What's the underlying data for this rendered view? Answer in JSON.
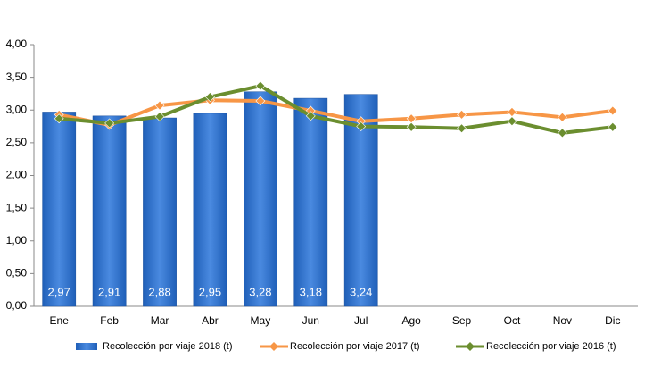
{
  "chart_data": {
    "type": "bar",
    "categories": [
      "Ene",
      "Feb",
      "Mar",
      "Abr",
      "May",
      "Jun",
      "Jul",
      "Ago",
      "Sep",
      "Oct",
      "Nov",
      "Dic"
    ],
    "series": [
      {
        "name": "Recolección por viaje 2018 (t)",
        "type": "bar",
        "color": "#2f72d0",
        "values": [
          2.97,
          2.91,
          2.88,
          2.95,
          3.28,
          3.18,
          3.24,
          null,
          null,
          null,
          null,
          null
        ],
        "value_labels": [
          "2,97",
          "2,91",
          "2,88",
          "2,95",
          "3,28",
          "3,18",
          "3,24",
          null,
          null,
          null,
          null,
          null
        ]
      },
      {
        "name": "Recolección por viaje 2017 (t)",
        "type": "line",
        "color": "#f79646",
        "values": [
          2.93,
          2.77,
          3.07,
          3.15,
          3.14,
          2.99,
          2.83,
          2.87,
          2.93,
          2.97,
          2.89,
          2.99
        ]
      },
      {
        "name": "Recolección por viaje 2016 (t)",
        "type": "line",
        "color": "#6b8e2f",
        "values": [
          2.87,
          2.8,
          2.9,
          3.2,
          3.37,
          2.91,
          2.75,
          2.74,
          2.72,
          2.83,
          2.65,
          2.74
        ]
      }
    ],
    "ylim": [
      0,
      4
    ],
    "yticks": [
      {
        "value": 0,
        "label": "0,00"
      },
      {
        "value": 0.5,
        "label": "0,50"
      },
      {
        "value": 1,
        "label": "1,00"
      },
      {
        "value": 1.5,
        "label": "1,50"
      },
      {
        "value": 2,
        "label": "2,00"
      },
      {
        "value": 2.5,
        "label": "2,50"
      },
      {
        "value": 3,
        "label": "3,00"
      },
      {
        "value": 3.5,
        "label": "3,50"
      },
      {
        "value": 4,
        "label": "4,00"
      }
    ],
    "legend": "bottom"
  }
}
